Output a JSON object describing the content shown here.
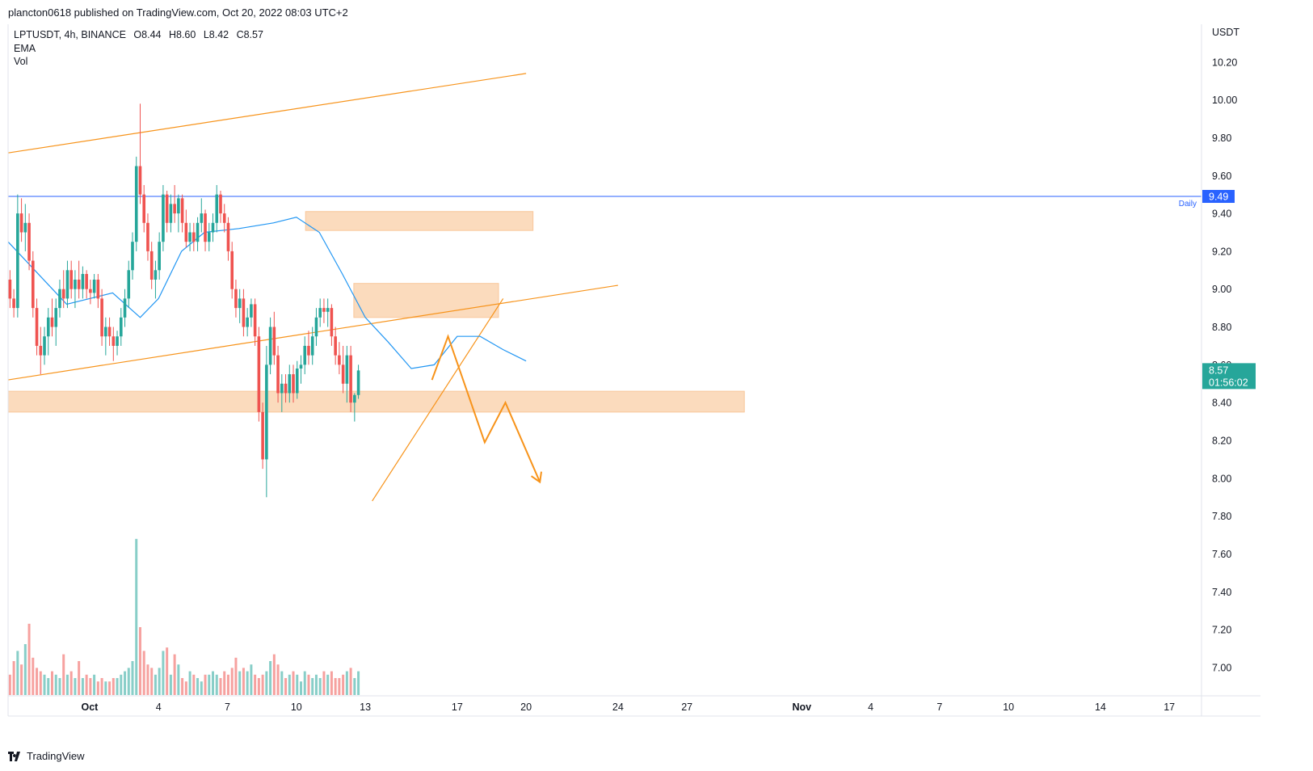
{
  "header": {
    "publisher_line": "plancton0618 published on TradingView.com, Oct 20, 2022 08:03 UTC+2"
  },
  "legend": {
    "symbol": "LPTUSDT, 4h, BINANCE",
    "open": "O8.44",
    "high": "H8.60",
    "low": "L8.42",
    "close": "C8.57",
    "indicator_ema": "EMA",
    "indicator_vol": "Vol"
  },
  "footer": {
    "brand": "TradingView"
  },
  "colors": {
    "up": "#26a69a",
    "down": "#ef5350",
    "ema": "#2196f3",
    "trend": "#f7931a",
    "zone": "#f9c79a",
    "hline": "#2962ff",
    "price_badge": "#26a69a",
    "hline_badge": "#2962ff"
  },
  "chart_data": {
    "type": "candlestick",
    "symbol": "LPTUSDT",
    "timeframe": "4h",
    "exchange": "BINANCE",
    "y_unit": "USDT",
    "ylim": [
      6.85,
      10.4
    ],
    "y_ticks": [
      "10.20",
      "10.00",
      "9.80",
      "9.60",
      "9.40",
      "9.20",
      "9.00",
      "8.80",
      "8.60",
      "8.40",
      "8.20",
      "8.00",
      "7.80",
      "7.60",
      "7.40",
      "7.20",
      "7.00"
    ],
    "x_ticks": [
      {
        "label": "Oct",
        "day": 1
      },
      {
        "label": "4",
        "day": 4
      },
      {
        "label": "7",
        "day": 7
      },
      {
        "label": "10",
        "day": 10
      },
      {
        "label": "13",
        "day": 13
      },
      {
        "label": "17",
        "day": 17
      },
      {
        "label": "20",
        "day": 20
      },
      {
        "label": "24",
        "day": 24
      },
      {
        "label": "27",
        "day": 27
      },
      {
        "label": "Nov",
        "day": 32
      },
      {
        "label": "4",
        "day": 35
      },
      {
        "label": "7",
        "day": 38
      },
      {
        "label": "10",
        "day": 41
      },
      {
        "label": "14",
        "day": 45
      },
      {
        "label": "17",
        "day": 48
      }
    ],
    "horizontal_line": {
      "label": "Daily",
      "value": 9.49,
      "value_label": "9.49"
    },
    "last_price": {
      "value": 8.57,
      "value_label": "8.57",
      "countdown": "01:56:02"
    },
    "candles_start_day": -2.55,
    "bars_per_day": 6,
    "candles": [
      [
        9.05,
        9.1,
        8.9,
        8.95
      ],
      [
        8.95,
        9.0,
        8.85,
        8.9
      ],
      [
        8.9,
        9.5,
        8.85,
        9.4
      ],
      [
        9.4,
        9.48,
        9.25,
        9.3
      ],
      [
        9.3,
        9.45,
        9.2,
        9.35
      ],
      [
        9.35,
        9.4,
        9.1,
        9.15
      ],
      [
        9.15,
        9.2,
        8.85,
        8.9
      ],
      [
        8.9,
        8.95,
        8.65,
        8.7
      ],
      [
        8.7,
        8.8,
        8.55,
        8.65
      ],
      [
        8.65,
        8.8,
        8.6,
        8.75
      ],
      [
        8.75,
        8.9,
        8.65,
        8.85
      ],
      [
        8.85,
        8.95,
        8.75,
        8.8
      ],
      [
        8.8,
        8.95,
        8.7,
        8.9
      ],
      [
        8.9,
        9.05,
        8.85,
        9.0
      ],
      [
        9.0,
        9.1,
        8.9,
        8.95
      ],
      [
        8.95,
        9.15,
        8.9,
        9.1
      ],
      [
        9.1,
        9.15,
        8.95,
        9.0
      ],
      [
        9.0,
        9.1,
        8.9,
        9.05
      ],
      [
        9.05,
        9.15,
        8.95,
        9.0
      ],
      [
        9.0,
        9.12,
        8.95,
        9.08
      ],
      [
        9.08,
        9.1,
        8.95,
        9.0
      ],
      [
        9.0,
        9.05,
        8.92,
        8.98
      ],
      [
        8.98,
        9.08,
        8.95,
        9.05
      ],
      [
        9.05,
        9.08,
        8.9,
        8.95
      ],
      [
        8.95,
        9.0,
        8.7,
        8.75
      ],
      [
        8.75,
        8.85,
        8.65,
        8.8
      ],
      [
        8.8,
        8.85,
        8.7,
        8.75
      ],
      [
        8.75,
        8.8,
        8.62,
        8.7
      ],
      [
        8.7,
        8.78,
        8.65,
        8.75
      ],
      [
        8.75,
        8.9,
        8.7,
        8.85
      ],
      [
        8.85,
        9.0,
        8.8,
        8.95
      ],
      [
        8.95,
        9.15,
        8.9,
        9.1
      ],
      [
        9.1,
        9.3,
        9.05,
        9.25
      ],
      [
        9.25,
        9.7,
        9.2,
        9.65
      ],
      [
        9.65,
        9.98,
        9.45,
        9.5
      ],
      [
        9.5,
        9.55,
        9.3,
        9.35
      ],
      [
        9.35,
        9.4,
        9.15,
        9.2
      ],
      [
        9.2,
        9.25,
        9.0,
        9.05
      ],
      [
        9.05,
        9.15,
        8.95,
        9.1
      ],
      [
        9.1,
        9.3,
        9.05,
        9.25
      ],
      [
        9.25,
        9.55,
        9.2,
        9.5
      ],
      [
        9.5,
        9.52,
        9.3,
        9.35
      ],
      [
        9.35,
        9.5,
        9.3,
        9.45
      ],
      [
        9.45,
        9.55,
        9.35,
        9.4
      ],
      [
        9.4,
        9.5,
        9.3,
        9.48
      ],
      [
        9.48,
        9.5,
        9.3,
        9.35
      ],
      [
        9.35,
        9.42,
        9.22,
        9.25
      ],
      [
        9.25,
        9.35,
        9.2,
        9.3
      ],
      [
        9.3,
        9.35,
        9.2,
        9.25
      ],
      [
        9.25,
        9.38,
        9.2,
        9.35
      ],
      [
        9.35,
        9.48,
        9.3,
        9.4
      ],
      [
        9.4,
        9.42,
        9.2,
        9.25
      ],
      [
        9.25,
        9.35,
        9.2,
        9.3
      ],
      [
        9.3,
        9.4,
        9.25,
        9.35
      ],
      [
        9.35,
        9.55,
        9.3,
        9.5
      ],
      [
        9.5,
        9.52,
        9.35,
        9.4
      ],
      [
        9.4,
        9.45,
        9.3,
        9.35
      ],
      [
        9.35,
        9.38,
        9.15,
        9.2
      ],
      [
        9.2,
        9.25,
        8.95,
        9.0
      ],
      [
        9.0,
        9.05,
        8.85,
        8.9
      ],
      [
        8.9,
        9.0,
        8.82,
        8.95
      ],
      [
        8.95,
        9.0,
        8.75,
        8.8
      ],
      [
        8.8,
        8.9,
        8.75,
        8.85
      ],
      [
        8.85,
        8.95,
        8.8,
        8.92
      ],
      [
        8.92,
        8.95,
        8.7,
        8.75
      ],
      [
        8.75,
        8.8,
        8.3,
        8.35
      ],
      [
        8.35,
        8.4,
        8.05,
        8.1
      ],
      [
        8.1,
        8.7,
        7.9,
        8.6
      ],
      [
        8.6,
        8.85,
        8.55,
        8.8
      ],
      [
        8.8,
        8.88,
        8.6,
        8.65
      ],
      [
        8.65,
        8.7,
        8.4,
        8.45
      ],
      [
        8.45,
        8.55,
        8.35,
        8.5
      ],
      [
        8.5,
        8.55,
        8.4,
        8.45
      ],
      [
        8.45,
        8.6,
        8.4,
        8.55
      ],
      [
        8.55,
        8.6,
        8.4,
        8.45
      ],
      [
        8.45,
        8.62,
        8.42,
        8.58
      ],
      [
        8.58,
        8.65,
        8.5,
        8.6
      ],
      [
        8.6,
        8.75,
        8.55,
        8.7
      ],
      [
        8.7,
        8.78,
        8.6,
        8.65
      ],
      [
        8.65,
        8.8,
        8.6,
        8.75
      ],
      [
        8.75,
        8.9,
        8.7,
        8.85
      ],
      [
        8.85,
        8.95,
        8.8,
        8.9
      ],
      [
        8.9,
        8.95,
        8.82,
        8.88
      ],
      [
        8.88,
        8.95,
        8.8,
        8.9
      ],
      [
        8.9,
        8.92,
        8.7,
        8.75
      ],
      [
        8.75,
        8.8,
        8.6,
        8.65
      ],
      [
        8.65,
        8.72,
        8.55,
        8.6
      ],
      [
        8.6,
        8.7,
        8.45,
        8.5
      ],
      [
        8.5,
        8.7,
        8.4,
        8.65
      ],
      [
        8.65,
        8.7,
        8.35,
        8.4
      ],
      [
        8.4,
        8.45,
        8.3,
        8.44
      ],
      [
        8.44,
        8.6,
        8.42,
        8.57
      ]
    ],
    "ema": [
      [
        -2.55,
        9.25
      ],
      [
        0.0,
        8.92
      ],
      [
        2.0,
        8.98
      ],
      [
        3.2,
        8.85
      ],
      [
        4.0,
        8.95
      ],
      [
        5.0,
        9.2
      ],
      [
        6.0,
        9.3
      ],
      [
        7.5,
        9.32
      ],
      [
        9.0,
        9.35
      ],
      [
        10.0,
        9.38
      ],
      [
        11.0,
        9.3
      ],
      [
        12.0,
        9.08
      ],
      [
        13.0,
        8.85
      ],
      [
        14.0,
        8.72
      ],
      [
        15.0,
        8.58
      ],
      [
        16.0,
        8.6
      ],
      [
        17.0,
        8.75
      ],
      [
        18.0,
        8.75
      ],
      [
        19.0,
        8.68
      ],
      [
        20.0,
        8.62
      ]
    ],
    "volume_max": 1.0,
    "volume": [
      0.12,
      0.2,
      0.26,
      0.18,
      0.3,
      0.42,
      0.22,
      0.16,
      0.14,
      0.12,
      0.1,
      0.14,
      0.12,
      0.1,
      0.24,
      0.12,
      0.14,
      0.1,
      0.2,
      0.1,
      0.12,
      0.1,
      0.12,
      0.08,
      0.1,
      0.08,
      0.08,
      0.1,
      0.1,
      0.12,
      0.14,
      0.16,
      0.2,
      0.92,
      0.4,
      0.26,
      0.18,
      0.16,
      0.12,
      0.16,
      0.26,
      0.28,
      0.12,
      0.24,
      0.18,
      0.1,
      0.08,
      0.14,
      0.12,
      0.1,
      0.08,
      0.12,
      0.12,
      0.14,
      0.12,
      0.1,
      0.14,
      0.12,
      0.16,
      0.22,
      0.14,
      0.16,
      0.14,
      0.18,
      0.12,
      0.1,
      0.12,
      0.14,
      0.2,
      0.24,
      0.18,
      0.14,
      0.1,
      0.12,
      0.14,
      0.12,
      0.08,
      0.14,
      0.12,
      0.1,
      0.12,
      0.1,
      0.14,
      0.12,
      0.14,
      0.1,
      0.1,
      0.12,
      0.14,
      0.16,
      0.1,
      0.14
    ],
    "drawings": {
      "trend_lines": [
        {
          "points": [
            [
              -2.55,
              9.72
            ],
            [
              20.0,
              10.14
            ]
          ]
        },
        {
          "points": [
            [
              -2.55,
              8.52
            ],
            [
              24.0,
              9.02
            ]
          ]
        },
        {
          "points": [
            [
              13.3,
              7.88
            ],
            [
              19.0,
              8.95
            ]
          ]
        }
      ],
      "zones": [
        {
          "x1": 10.4,
          "x2": 20.3,
          "y_top": 9.41,
          "y_bottom": 9.31
        },
        {
          "x1": 12.5,
          "x2": 18.8,
          "y_top": 9.03,
          "y_bottom": 8.85
        },
        {
          "x1": -2.55,
          "x2": 29.5,
          "y_top": 8.46,
          "y_bottom": 8.35
        }
      ],
      "projection_path": [
        [
          15.9,
          8.52
        ],
        [
          16.6,
          8.75
        ],
        [
          18.2,
          8.19
        ],
        [
          19.1,
          8.4
        ],
        [
          20.6,
          7.98
        ]
      ]
    }
  }
}
